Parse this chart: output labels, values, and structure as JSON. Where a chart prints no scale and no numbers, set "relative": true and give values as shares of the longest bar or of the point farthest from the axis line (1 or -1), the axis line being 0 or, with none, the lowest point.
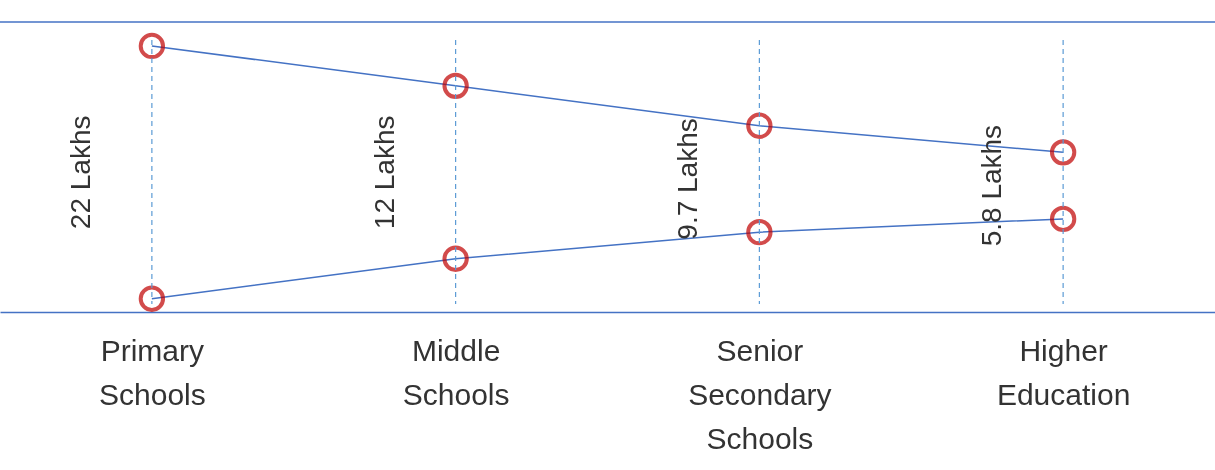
{
  "chart_data": {
    "type": "line",
    "relative": true,
    "categories": [
      "Primary Schools",
      "Middle Schools",
      "Senior Secondary Schools",
      "Higher Education"
    ],
    "series": [
      {
        "color": "#4472c4",
        "values": [
          1,
          0.85,
          0.7,
          0.6
        ]
      },
      {
        "color": "#4472c4",
        "values": [
          0.05,
          0.2,
          0.3,
          0.35
        ]
      }
    ],
    "marker": "circle",
    "ref_lines": [
      {
        "axis": "y",
        "value": 1.09,
        "color": "#4472c4"
      },
      {
        "axis": "x",
        "value": "Primary Schools",
        "color": "#5b9bd5",
        "line_style": "dashed"
      },
      {
        "axis": "x",
        "value": "Middle Schools",
        "color": "#5b9bd5",
        "line_style": "dashed"
      },
      {
        "axis": "x",
        "value": "Senior Secondary Schools",
        "color": "#5b9bd5",
        "line_style": "dashed"
      },
      {
        "axis": "x",
        "value": "Higher Education",
        "color": "#5b9bd5",
        "line_style": "dashed"
      }
    ],
    "annotations": [
      "22 Lakhs",
      "12 Lakhs",
      "9.7 Lakhs",
      "5.8 Lakhs"
    ]
  }
}
